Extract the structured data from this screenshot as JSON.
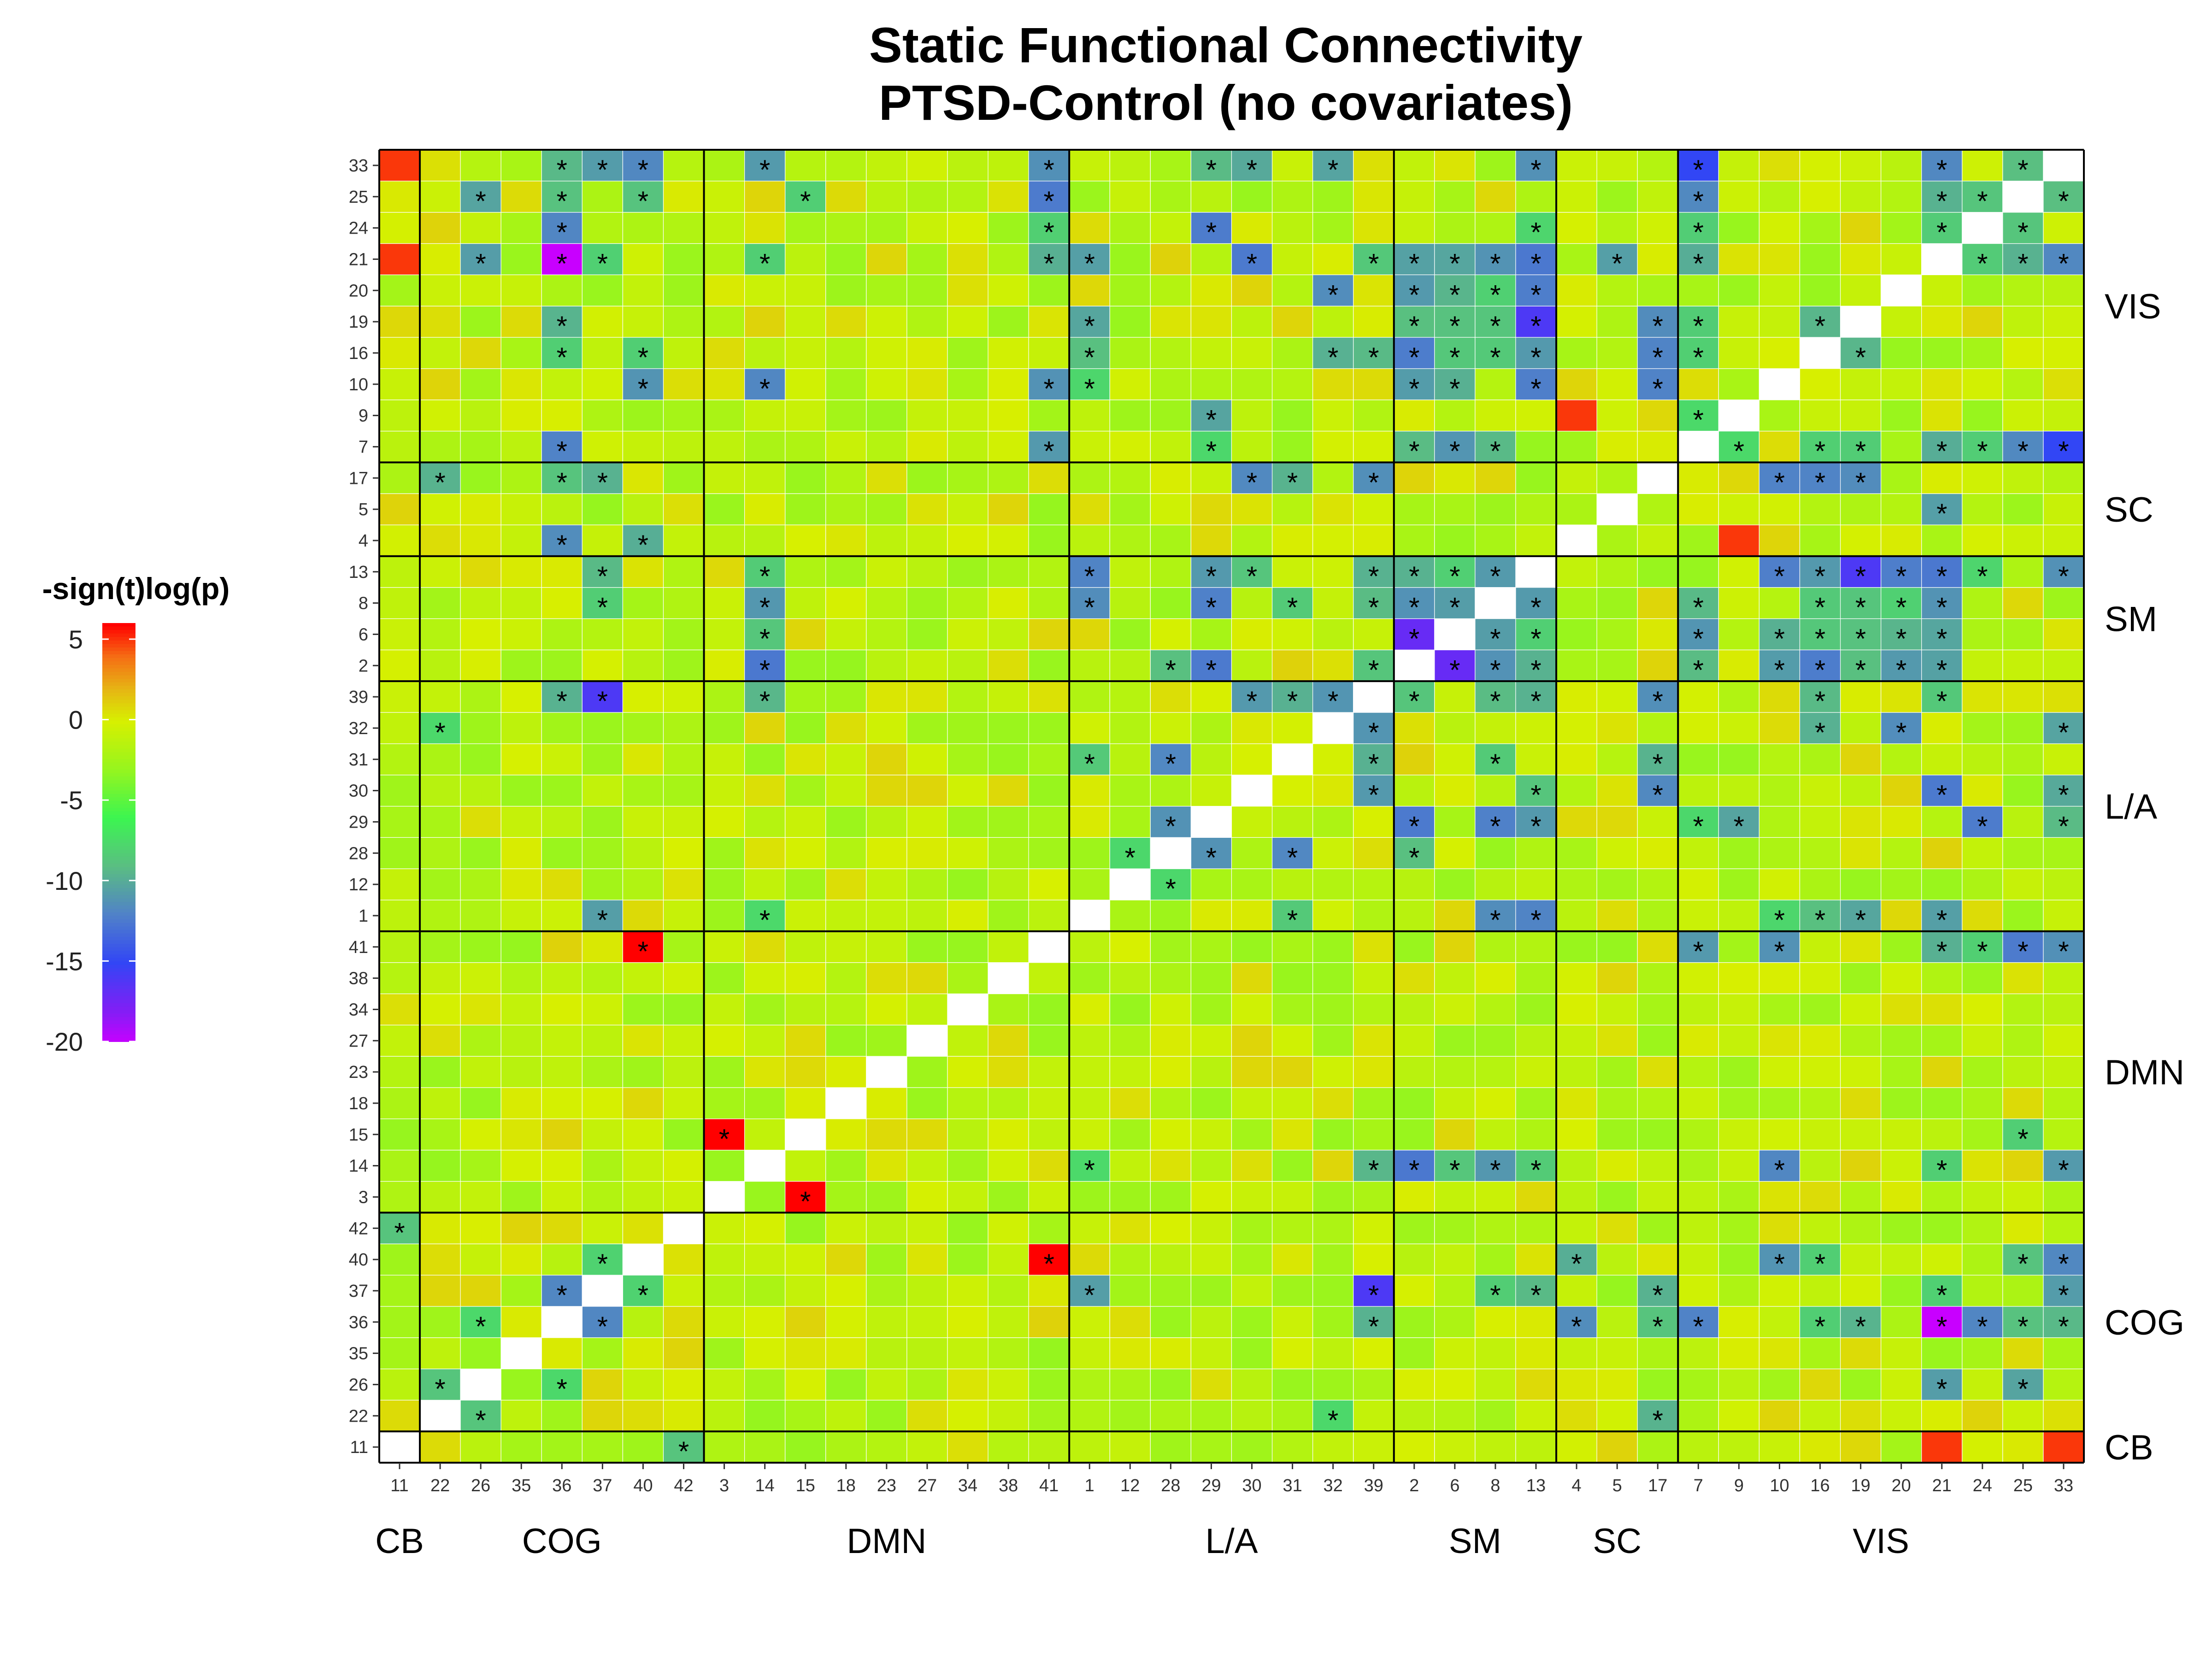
{
  "chart_data": {
    "type": "heatmap",
    "title": [
      "Static Functional Connectivity",
      "PTSD-Control (no covariates)"
    ],
    "colorbar": {
      "title": "-sign(t)log(p)",
      "ticks": [
        5,
        0,
        -5,
        -10,
        -15,
        -20
      ],
      "range": [
        -20,
        6
      ]
    },
    "x_labels": [
      "11",
      "22",
      "26",
      "35",
      "36",
      "37",
      "40",
      "42",
      "3",
      "14",
      "15",
      "18",
      "23",
      "27",
      "34",
      "38",
      "41",
      "1",
      "12",
      "28",
      "29",
      "30",
      "31",
      "32",
      "39",
      "2",
      "6",
      "8",
      "13",
      "4",
      "5",
      "17",
      "7",
      "9",
      "10",
      "16",
      "19",
      "20",
      "21",
      "24",
      "25",
      "33"
    ],
    "y_labels": [
      "11",
      "22",
      "26",
      "35",
      "36",
      "37",
      "40",
      "42",
      "3",
      "14",
      "15",
      "18",
      "23",
      "27",
      "34",
      "38",
      "41",
      "1",
      "12",
      "28",
      "29",
      "30",
      "31",
      "32",
      "39",
      "2",
      "6",
      "8",
      "13",
      "4",
      "5",
      "17",
      "7",
      "9",
      "10",
      "16",
      "19",
      "20",
      "21",
      "24",
      "25",
      "33"
    ],
    "networks": [
      {
        "name": "CB",
        "size": 1
      },
      {
        "name": "COG",
        "size": 7
      },
      {
        "name": "DMN",
        "size": 9
      },
      {
        "name": "L/A",
        "size": 8
      },
      {
        "name": "SM",
        "size": 4
      },
      {
        "name": "SC",
        "size": 3
      },
      {
        "name": "VIS",
        "size": 10
      }
    ],
    "significant_pairs": [
      [
        0,
        7
      ],
      [
        1,
        2
      ],
      [
        1,
        23
      ],
      [
        1,
        31
      ],
      [
        2,
        4
      ],
      [
        2,
        38
      ],
      [
        2,
        40
      ],
      [
        4,
        5
      ],
      [
        4,
        24
      ],
      [
        4,
        29
      ],
      [
        4,
        31
      ],
      [
        4,
        32
      ],
      [
        4,
        35
      ],
      [
        4,
        36
      ],
      [
        4,
        38
      ],
      [
        4,
        39
      ],
      [
        4,
        40
      ],
      [
        4,
        41
      ],
      [
        5,
        6
      ],
      [
        5,
        17
      ],
      [
        5,
        27
      ],
      [
        5,
        28
      ],
      [
        5,
        31
      ],
      [
        5,
        38
      ],
      [
        5,
        41
      ],
      [
        6,
        29
      ],
      [
        6,
        34
      ],
      [
        6,
        35
      ],
      [
        6,
        40
      ],
      [
        6,
        41
      ],
      [
        8,
        10
      ],
      [
        9,
        17
      ],
      [
        9,
        24
      ],
      [
        9,
        25
      ],
      [
        9,
        26
      ],
      [
        9,
        27
      ],
      [
        9,
        28
      ],
      [
        9,
        34
      ],
      [
        9,
        38
      ],
      [
        9,
        41
      ],
      [
        10,
        40
      ],
      [
        16,
        32
      ],
      [
        16,
        34
      ],
      [
        16,
        38
      ],
      [
        16,
        39
      ],
      [
        16,
        40
      ],
      [
        16,
        41
      ],
      [
        17,
        22
      ],
      [
        17,
        27
      ],
      [
        17,
        28
      ],
      [
        17,
        34
      ],
      [
        17,
        35
      ],
      [
        17,
        36
      ],
      [
        17,
        38
      ],
      [
        18,
        19
      ],
      [
        19,
        20
      ],
      [
        19,
        22
      ],
      [
        19,
        25
      ],
      [
        20,
        25
      ],
      [
        20,
        27
      ],
      [
        20,
        28
      ],
      [
        20,
        32
      ],
      [
        20,
        33
      ],
      [
        20,
        39
      ],
      [
        20,
        41
      ],
      [
        21,
        24
      ],
      [
        21,
        28
      ],
      [
        21,
        31
      ],
      [
        21,
        38
      ],
      [
        21,
        41
      ],
      [
        22,
        24
      ],
      [
        22,
        27
      ],
      [
        22,
        31
      ],
      [
        23,
        24
      ],
      [
        23,
        35
      ],
      [
        23,
        37
      ],
      [
        23,
        41
      ],
      [
        24,
        25
      ],
      [
        24,
        27
      ],
      [
        24,
        28
      ],
      [
        24,
        31
      ],
      [
        24,
        35
      ],
      [
        24,
        38
      ],
      [
        25,
        26
      ],
      [
        25,
        27
      ],
      [
        25,
        28
      ],
      [
        25,
        32
      ],
      [
        25,
        34
      ],
      [
        25,
        35
      ],
      [
        25,
        36
      ],
      [
        25,
        37
      ],
      [
        25,
        38
      ],
      [
        26,
        27
      ],
      [
        26,
        28
      ],
      [
        26,
        32
      ],
      [
        26,
        34
      ],
      [
        26,
        35
      ],
      [
        26,
        36
      ],
      [
        26,
        37
      ],
      [
        26,
        38
      ],
      [
        27,
        28
      ],
      [
        27,
        32
      ],
      [
        27,
        35
      ],
      [
        27,
        36
      ],
      [
        27,
        37
      ],
      [
        27,
        38
      ],
      [
        28,
        34
      ],
      [
        28,
        35
      ],
      [
        28,
        36
      ],
      [
        28,
        37
      ],
      [
        28,
        38
      ],
      [
        28,
        39
      ],
      [
        28,
        41
      ],
      [
        30,
        38
      ],
      [
        31,
        34
      ],
      [
        31,
        35
      ],
      [
        31,
        36
      ],
      [
        32,
        33
      ],
      [
        32,
        35
      ],
      [
        32,
        36
      ],
      [
        32,
        38
      ],
      [
        32,
        39
      ],
      [
        32,
        40
      ],
      [
        32,
        41
      ],
      [
        35,
        36
      ],
      [
        38,
        39
      ],
      [
        38,
        40
      ],
      [
        38,
        41
      ],
      [
        39,
        40
      ],
      [
        40,
        41
      ]
    ],
    "notable_values": [
      {
        "row": "21",
        "col": "36",
        "value": -20
      },
      {
        "row": "13",
        "col": "19",
        "value": -16
      },
      {
        "row": "33",
        "col": "7",
        "value": -15
      },
      {
        "row": "6",
        "col": "2",
        "value": -17
      },
      {
        "row": "39",
        "col": "37",
        "value": -16
      },
      {
        "row": "37",
        "col": "39",
        "value": -16
      },
      {
        "row": "3",
        "col": "15",
        "value": 6
      },
      {
        "row": "40",
        "col": "41",
        "value": 6
      },
      {
        "row": "11",
        "col": "21",
        "value": 5
      },
      {
        "row": "11",
        "col": "33",
        "value": 5
      },
      {
        "row": "4",
        "col": "9",
        "value": 5
      }
    ]
  }
}
